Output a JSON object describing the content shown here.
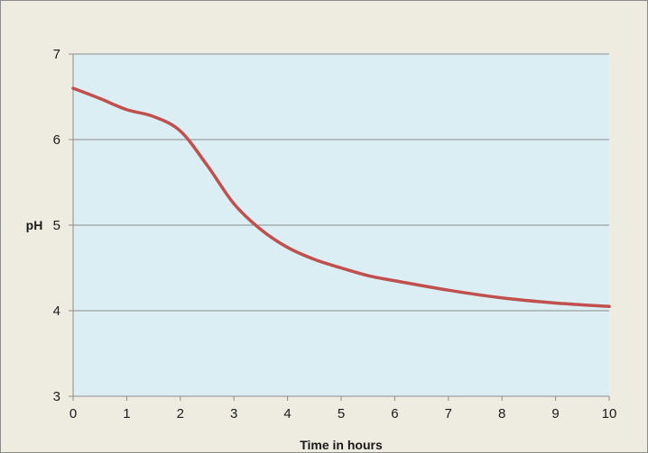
{
  "chart_data": {
    "type": "line",
    "title": "",
    "xlabel": "Time in hours",
    "ylabel": "pH",
    "xlim": [
      0,
      10
    ],
    "ylim": [
      3,
      7
    ],
    "x_ticks": [
      "0",
      "1",
      "2",
      "3",
      "4",
      "5",
      "6",
      "7",
      "8",
      "9",
      "10"
    ],
    "y_ticks": [
      "3",
      "4",
      "5",
      "6",
      "7"
    ],
    "grid": true,
    "legend": "none",
    "plot_background": "#daeef3",
    "chart_background": "#eeece1",
    "series": [
      {
        "color": "#c0504d",
        "x": [
          0,
          0.5,
          1,
          1.5,
          2,
          2.5,
          3,
          3.5,
          4,
          4.5,
          5,
          5.5,
          6,
          7,
          8,
          9,
          10
        ],
        "y": [
          6.6,
          6.48,
          6.35,
          6.27,
          6.1,
          5.7,
          5.25,
          4.95,
          4.74,
          4.6,
          4.5,
          4.41,
          4.35,
          4.24,
          4.15,
          4.09,
          4.05
        ]
      }
    ]
  }
}
